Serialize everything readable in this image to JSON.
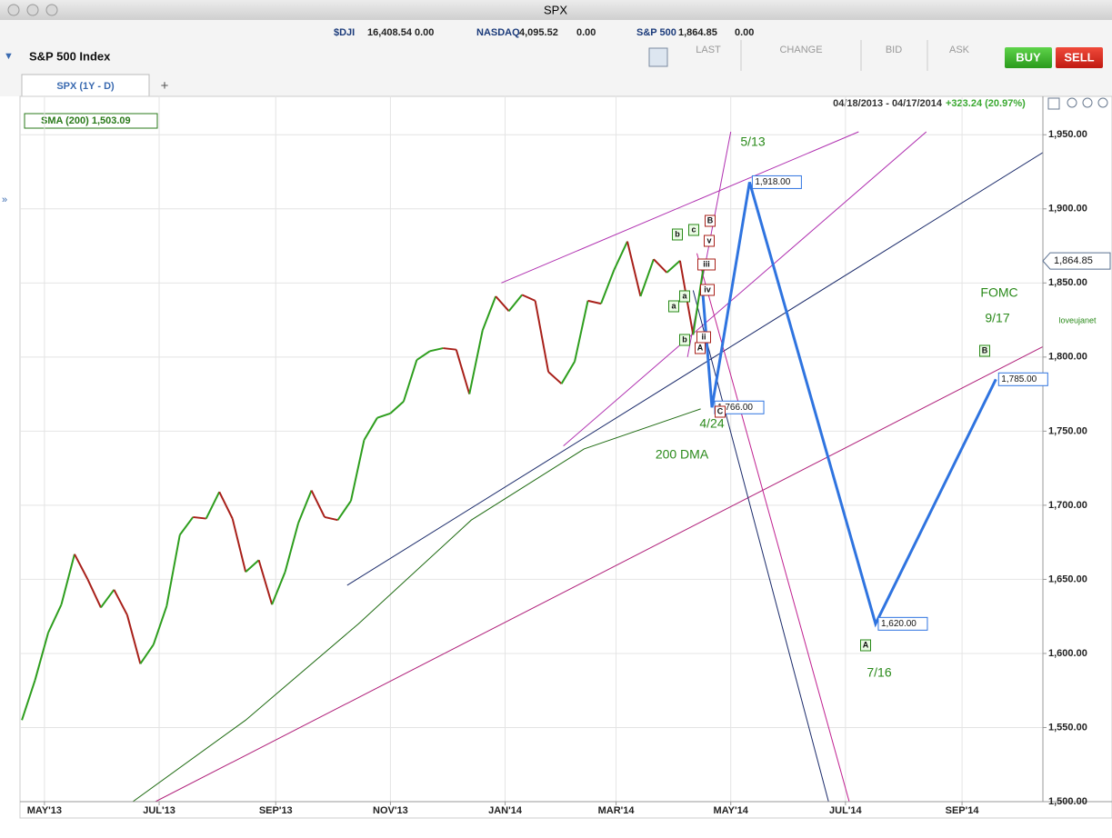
{
  "window": {
    "title": "SPX"
  },
  "ticker": [
    {
      "symbol": "$DJI",
      "price": "16,408.54",
      "change": "0.00"
    },
    {
      "symbol": "NASDAQ",
      "price": "4,095.52",
      "change": "0.00"
    },
    {
      "symbol": "S&P 500",
      "price": "1,864.85",
      "change": "0.00"
    }
  ],
  "header": {
    "title": "S&P 500 Index",
    "columns": [
      "LAST",
      "CHANGE",
      "BID",
      "ASK"
    ],
    "buy": "BUY",
    "sell": "SELL"
  },
  "tab": {
    "label": "SPX (1Y - D)",
    "add": "+"
  },
  "indicator": "SMA (200) 1,503.09",
  "range": {
    "dates": "04/18/2013 - 04/17/2014",
    "change": "+323.24 (20.97%)"
  },
  "chart_data": {
    "type": "line",
    "xlim": [
      0,
      544
    ],
    "xticks": [
      {
        "value": 13,
        "label": "MAY'13"
      },
      {
        "value": 74,
        "label": "JUL'13"
      },
      {
        "value": 136,
        "label": "SEP'13"
      },
      {
        "value": 197,
        "label": "NOV'13"
      },
      {
        "value": 258,
        "label": "JAN'14"
      },
      {
        "value": 317,
        "label": "MAR'14"
      },
      {
        "value": 378,
        "label": "MAY'14"
      },
      {
        "value": 439,
        "label": "JUL'14"
      },
      {
        "value": 501,
        "label": "SEP'14"
      }
    ],
    "ylim": [
      1500,
      1952
    ],
    "yticks": [
      {
        "value": 1500,
        "label": "1,500.00"
      },
      {
        "value": 1550,
        "label": "1,550.00"
      },
      {
        "value": 1600,
        "label": "1,600.00"
      },
      {
        "value": 1650,
        "label": "1,650.00"
      },
      {
        "value": 1700,
        "label": "1,700.00"
      },
      {
        "value": 1750,
        "label": "1,750.00"
      },
      {
        "value": 1800,
        "label": "1,800.00"
      },
      {
        "value": 1850,
        "label": "1,850.00"
      },
      {
        "value": 1900,
        "label": "1,900.00"
      },
      {
        "value": 1950,
        "label": "1,950.00"
      }
    ],
    "grid": true,
    "last_price": {
      "value": 1864.85,
      "label": "1,864.85"
    },
    "series": [
      {
        "name": "SPX",
        "up_color": "#2e9e1e",
        "down_color": "#a8201a",
        "x": [
          1,
          8,
          15,
          22,
          29,
          36,
          43,
          50,
          57,
          64,
          71,
          78,
          85,
          92,
          99,
          106,
          113,
          120,
          127,
          134,
          141,
          148,
          155,
          162,
          169,
          176,
          183,
          190,
          197,
          204,
          211,
          218,
          225,
          232,
          239,
          246,
          253,
          260,
          267,
          274,
          281,
          288,
          295,
          302,
          309,
          316,
          323,
          330,
          337,
          344,
          351,
          358,
          364
        ],
        "values": [
          1555,
          1582,
          1614,
          1633,
          1667,
          1650,
          1631,
          1643,
          1626,
          1593,
          1606,
          1632,
          1680,
          1692,
          1691,
          1709,
          1691,
          1655,
          1663,
          1633,
          1655,
          1688,
          1710,
          1692,
          1690,
          1703,
          1744,
          1759,
          1762,
          1770,
          1798,
          1804,
          1806,
          1805,
          1775,
          1818,
          1841,
          1831,
          1842,
          1838,
          1790,
          1782,
          1797,
          1838,
          1836,
          1859,
          1878,
          1841,
          1866,
          1857,
          1865,
          1815,
          1865
        ]
      },
      {
        "name": "SMA (200)",
        "color": "#1f6b12",
        "x": [
          60,
          120,
          180,
          240,
          300,
          362
        ],
        "values": [
          1500,
          1555,
          1620,
          1690,
          1738,
          1765
        ]
      },
      {
        "name": "Projection",
        "color": "#2f74e0",
        "x": [
          363,
          368,
          388,
          455,
          519
        ],
        "values": [
          1845,
          1766,
          1918,
          1620,
          1785
        ],
        "value_labels": [
          null,
          "1,766.00",
          "1,918.00",
          "1,620.00",
          "1,785.00"
        ]
      }
    ],
    "trendlines": [
      {
        "color": "#1a2a6a",
        "x": [
          174,
          544
        ],
        "values": [
          1646,
          1938
        ]
      },
      {
        "color": "#b0207a",
        "x": [
          72,
          544
        ],
        "values": [
          1500,
          1807
        ]
      },
      {
        "color": "#b030b0",
        "x": [
          256,
          446
        ],
        "values": [
          1850,
          1952
        ]
      },
      {
        "color": "#b030b0",
        "x": [
          289,
          482
        ],
        "values": [
          1740,
          1952
        ]
      },
      {
        "color": "#1a2a6a",
        "x": [
          358,
          430
        ],
        "values": [
          1845,
          1500
        ]
      },
      {
        "color": "#c02090",
        "x": [
          360,
          441
        ],
        "values": [
          1870,
          1500
        ]
      },
      {
        "color": "#b030b0",
        "x": [
          355,
          378
        ],
        "values": [
          1800,
          1952
        ]
      }
    ],
    "annotations": [
      "5/13",
      "4/24",
      "200 DMA",
      "FOMC",
      "9/17",
      "7/16",
      "loveujanet"
    ],
    "wave_labels": [
      "B",
      "c",
      "b",
      "v",
      "iii",
      "a",
      "iv",
      "a",
      "ii",
      "b",
      "A",
      "C",
      "B",
      "A"
    ]
  }
}
